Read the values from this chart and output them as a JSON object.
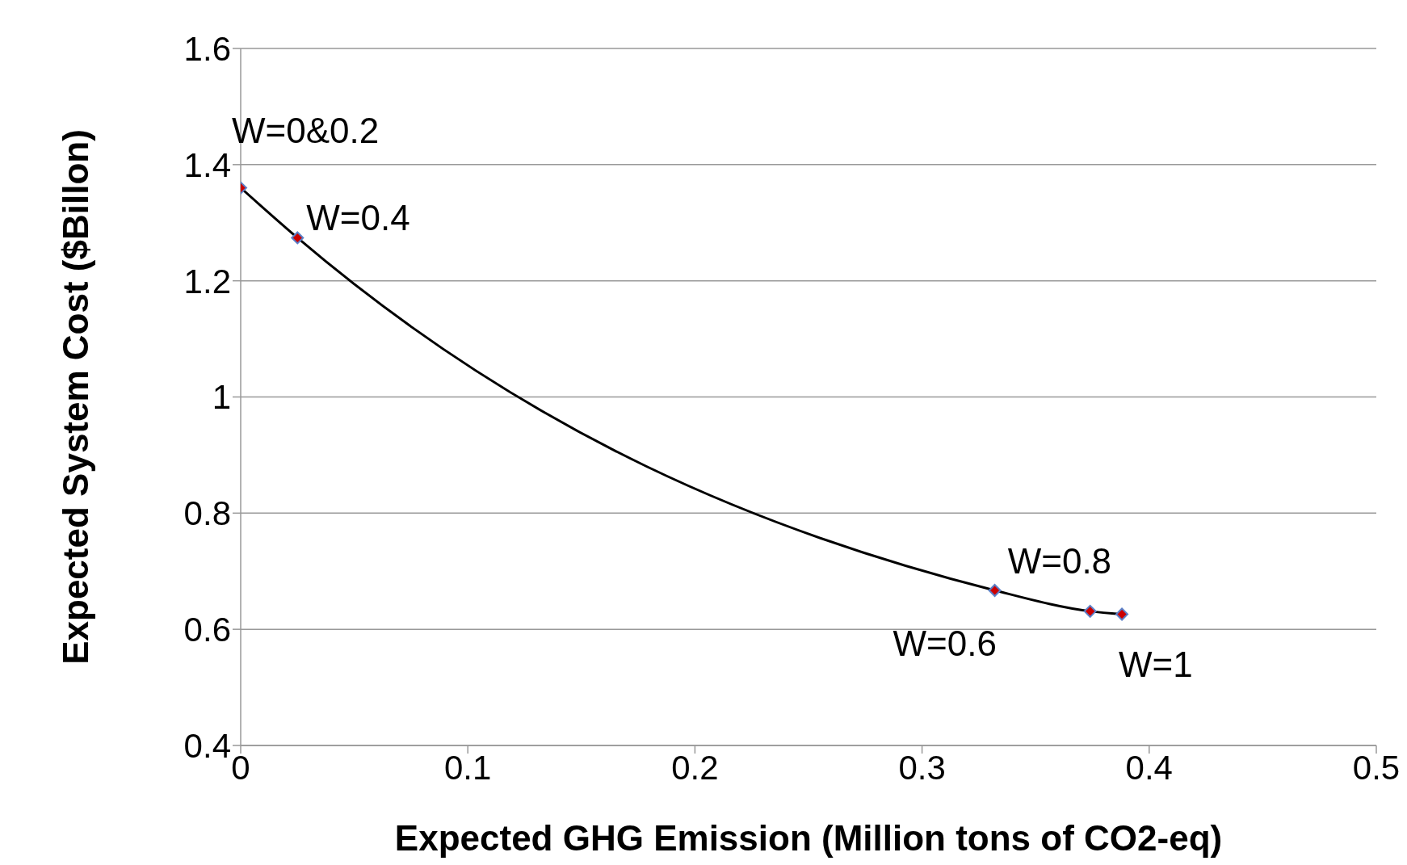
{
  "chart_data": {
    "type": "line",
    "xlabel": "Expected GHG Emission (Million tons of CO2-eq)",
    "ylabel": "Expected System Cost ($Billon)",
    "x": [
      0,
      0.025,
      0.332,
      0.374,
      0.388
    ],
    "series": [
      {
        "color": "#000000",
        "colors": [
          "#cc0000",
          "#cc0000",
          "#cc0000",
          "#cc0000",
          "#cc0000"
        ],
        "values": [
          1.36,
          1.274,
          0.667,
          0.631,
          0.626
        ]
      }
    ],
    "xlim": [
      0,
      0.5
    ],
    "xticks": [
      0,
      0.1,
      0.2,
      0.3,
      0.4,
      0.5
    ],
    "ylim": [
      0.4,
      1.6
    ],
    "yticks": [
      0.4,
      0.6,
      0.8,
      1,
      1.2,
      1.4,
      1.6
    ],
    "grid": "y",
    "marker": "diamond",
    "line_style": "solid",
    "legend": false,
    "annotations": [
      {
        "text": "W=0&0.2",
        "x": 0,
        "y": 1.36
      },
      {
        "text": "W=0.4",
        "x": 0.025,
        "y": 1.274
      },
      {
        "text": "W=0.6",
        "x": 0.332,
        "y": 0.667
      },
      {
        "text": "W=0.8",
        "x": 0.374,
        "y": 0.631
      },
      {
        "text": "W=1",
        "x": 0.388,
        "y": 0.626
      }
    ]
  }
}
